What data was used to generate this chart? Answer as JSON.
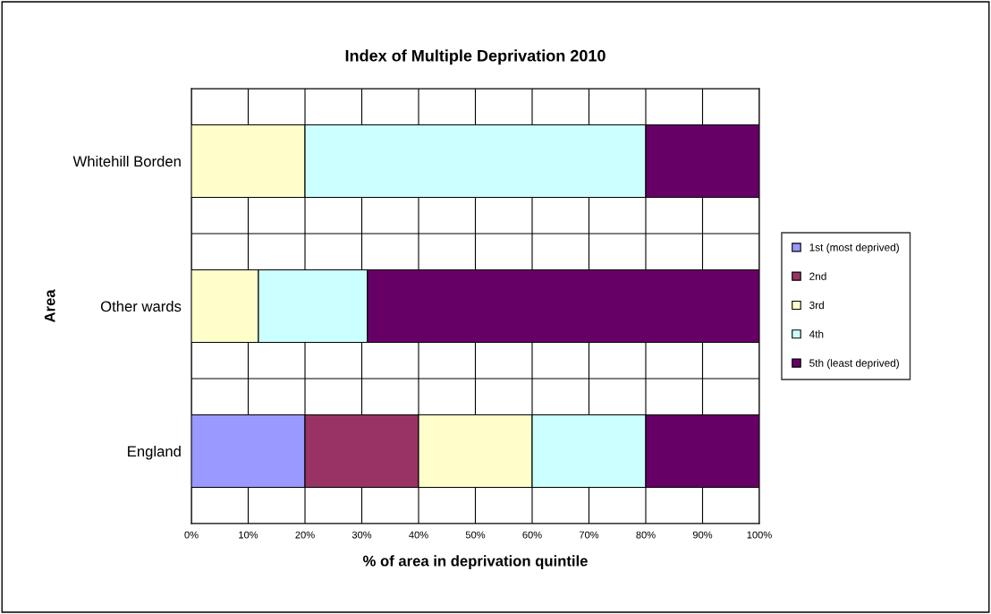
{
  "chart_data": {
    "type": "bar",
    "orientation": "horizontal",
    "stacked": true,
    "title": "Index of Multiple Deprivation 2010",
    "xlabel": "% of area in deprivation quintile",
    "ylabel": "Area",
    "categories": [
      "Whitehill Borden",
      "Other wards",
      "England"
    ],
    "series": [
      {
        "name": "1st (most deprived)",
        "color": "#9999ff",
        "values": [
          0,
          0,
          20
        ]
      },
      {
        "name": "2nd",
        "color": "#993366",
        "values": [
          0,
          0,
          20
        ]
      },
      {
        "name": "3rd",
        "color": "#ffffcc",
        "values": [
          20,
          11.8,
          20
        ]
      },
      {
        "name": "4th",
        "color": "#ccffff",
        "values": [
          60,
          19.2,
          20
        ]
      },
      {
        "name": "5th (least deprived)",
        "color": "#660066",
        "values": [
          20,
          69.0,
          20
        ]
      }
    ],
    "xlim": [
      0,
      100
    ],
    "xticks": [
      {
        "value": 0,
        "label": "0%"
      },
      {
        "value": 10,
        "label": "10%"
      },
      {
        "value": 20,
        "label": "20%"
      },
      {
        "value": 30,
        "label": "30%"
      },
      {
        "value": 40,
        "label": "40%"
      },
      {
        "value": 50,
        "label": "50%"
      },
      {
        "value": 60,
        "label": "60%"
      },
      {
        "value": 70,
        "label": "70%"
      },
      {
        "value": 80,
        "label": "80%"
      },
      {
        "value": 90,
        "label": "90%"
      },
      {
        "value": 100,
        "label": "100%"
      }
    ],
    "grid": true,
    "legend": "right"
  }
}
